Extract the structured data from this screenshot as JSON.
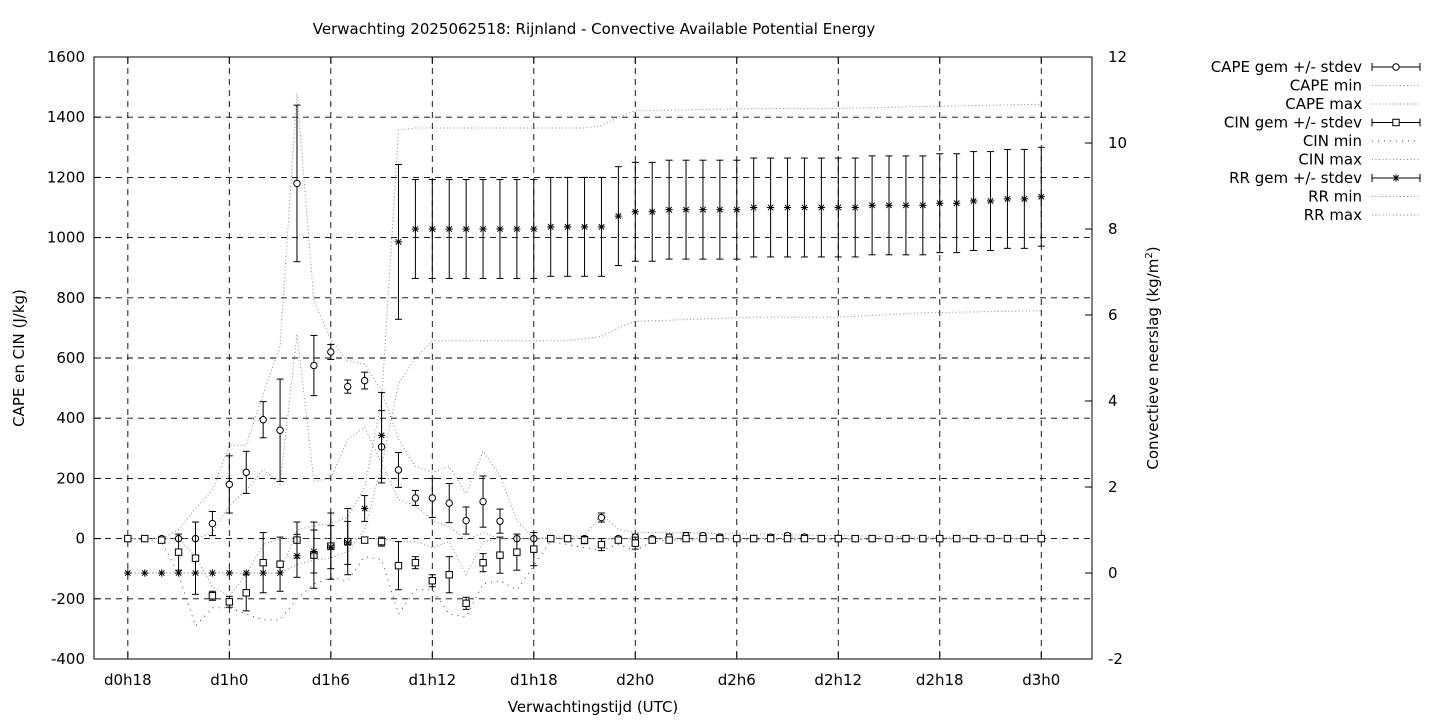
{
  "chart_data": {
    "type": "line",
    "title": "Verwachting 2025062518: Rijnland - Convective Available Potential Energy",
    "xlabel": "Verwachtingstijd (UTC)",
    "ylabel": "CAPE en CIN (J/kg)",
    "y2label": "Convectieve neerslag (kg/m",
    "y2label_sup": "2",
    "y2label_close": ")",
    "x_unit": "hours since d0h0",
    "xlim": [
      16,
      75
    ],
    "ylim": [
      -400,
      1600
    ],
    "y2lim": [
      -2,
      12
    ],
    "grid": true,
    "legend_position": "outside-right",
    "x_ticks": [
      {
        "v": 18,
        "label": "d0h18"
      },
      {
        "v": 24,
        "label": "d1h0"
      },
      {
        "v": 30,
        "label": "d1h6"
      },
      {
        "v": 36,
        "label": "d1h12"
      },
      {
        "v": 42,
        "label": "d1h18"
      },
      {
        "v": 48,
        "label": "d2h0"
      },
      {
        "v": 54,
        "label": "d2h6"
      },
      {
        "v": 60,
        "label": "d2h12"
      },
      {
        "v": 66,
        "label": "d2h18"
      },
      {
        "v": 72,
        "label": "d3h0"
      }
    ],
    "y_ticks": [
      -400,
      -200,
      0,
      200,
      400,
      600,
      800,
      1000,
      1200,
      1400,
      1600
    ],
    "y2_ticks": [
      -2,
      0,
      2,
      4,
      6,
      8,
      10,
      12
    ],
    "legend": [
      {
        "label": "CAPE gem +/- stdev",
        "style": "errbar",
        "marker": "circle"
      },
      {
        "label": "CAPE min",
        "style": "dotted"
      },
      {
        "label": "CAPE max",
        "style": "dotted"
      },
      {
        "label": "CIN gem +/- stdev",
        "style": "errbar",
        "marker": "square"
      },
      {
        "label": "CIN min",
        "style": "dotted-coarse"
      },
      {
        "label": "CIN max",
        "style": "dotted"
      },
      {
        "label": "RR gem +/- stdev",
        "style": "errbar",
        "marker": "star"
      },
      {
        "label": "RR min",
        "style": "dotted"
      },
      {
        "label": "RR max",
        "style": "dotted"
      }
    ],
    "x": [
      18,
      19,
      20,
      21,
      22,
      23,
      24,
      25,
      26,
      27,
      28,
      29,
      30,
      31,
      32,
      33,
      34,
      35,
      36,
      37,
      38,
      39,
      40,
      41,
      42,
      43,
      44,
      45,
      46,
      47,
      48,
      49,
      50,
      51,
      52,
      53,
      54,
      55,
      56,
      57,
      58,
      59,
      60,
      61,
      62,
      63,
      64,
      65,
      66,
      67,
      68,
      69,
      70,
      71,
      72
    ],
    "series": [
      {
        "name": "CAPE gem +/- stdev",
        "axis": "y",
        "marker": "circle",
        "values": [
          0,
          0,
          0,
          0,
          0,
          50,
          180,
          220,
          395,
          360,
          1180,
          575,
          620,
          505,
          525,
          305,
          228,
          135,
          135,
          118,
          60,
          123,
          58,
          0,
          0,
          0,
          0,
          0,
          70,
          0,
          5,
          0,
          5,
          10,
          10,
          5,
          0,
          0,
          5,
          10,
          5,
          0,
          0,
          0,
          0,
          0,
          0,
          0,
          0,
          0,
          0,
          0,
          0,
          0,
          0
        ],
        "std": [
          0,
          0,
          0,
          0,
          0,
          40,
          95,
          70,
          60,
          170,
          260,
          100,
          25,
          22,
          28,
          120,
          58,
          25,
          65,
          65,
          45,
          85,
          40,
          0,
          0,
          0,
          0,
          0,
          15,
          0,
          10,
          5,
          10,
          10,
          8,
          8,
          0,
          0,
          8,
          8,
          8,
          0,
          0,
          0,
          0,
          0,
          0,
          0,
          0,
          0,
          0,
          0,
          0,
          0,
          0
        ]
      },
      {
        "name": "CIN gem +/- stdev",
        "axis": "y",
        "marker": "square",
        "values": [
          0,
          0,
          -5,
          -45,
          -65,
          -190,
          -210,
          -180,
          -80,
          -85,
          -5,
          -55,
          -25,
          -10,
          -5,
          -10,
          -90,
          -80,
          -140,
          -120,
          -215,
          -80,
          -55,
          -45,
          -35,
          0,
          0,
          -5,
          -20,
          -5,
          -15,
          -5,
          -5,
          0,
          0,
          0,
          0,
          0,
          0,
          0,
          0,
          0,
          0,
          0,
          0,
          0,
          0,
          0,
          0,
          0,
          0,
          0,
          0,
          0,
          0
        ],
        "std": [
          0,
          0,
          8,
          60,
          120,
          15,
          18,
          60,
          100,
          90,
          60,
          110,
          110,
          110,
          0,
          15,
          80,
          20,
          20,
          60,
          20,
          30,
          60,
          60,
          55,
          0,
          0,
          12,
          20,
          8,
          20,
          8,
          8,
          0,
          0,
          0,
          0,
          0,
          0,
          0,
          0,
          0,
          0,
          0,
          0,
          0,
          0,
          0,
          0,
          0,
          0,
          0,
          0,
          0,
          0
        ]
      },
      {
        "name": "RR gem +/- stdev",
        "axis": "y2",
        "marker": "star",
        "values": [
          0,
          0,
          0,
          0,
          0,
          0,
          0,
          0,
          0,
          0,
          0.4,
          0.5,
          0.6,
          0.7,
          1.5,
          3.2,
          7.7,
          8,
          8,
          8,
          8,
          8,
          8,
          8,
          8,
          8.05,
          8.05,
          8.05,
          8.05,
          8.3,
          8.4,
          8.4,
          8.45,
          8.45,
          8.45,
          8.45,
          8.45,
          8.5,
          8.5,
          8.5,
          8.5,
          8.5,
          8.5,
          8.5,
          8.55,
          8.55,
          8.55,
          8.55,
          8.6,
          8.6,
          8.65,
          8.65,
          8.7,
          8.7,
          8.75
        ],
        "std": [
          0,
          0,
          0,
          0,
          0,
          0,
          0,
          0,
          0,
          0,
          0.5,
          0.5,
          0.5,
          0.5,
          0.3,
          1,
          1.8,
          1.15,
          1.15,
          1.15,
          1.15,
          1.15,
          1.15,
          1.15,
          1.15,
          1.15,
          1.15,
          1.15,
          1.15,
          1.15,
          1.15,
          1.15,
          1.15,
          1.15,
          1.15,
          1.15,
          1.15,
          1.15,
          1.15,
          1.15,
          1.15,
          1.15,
          1.15,
          1.15,
          1.15,
          1.15,
          1.15,
          1.15,
          1.15,
          1.15,
          1.15,
          1.15,
          1.15,
          1.15,
          1.15
        ]
      },
      {
        "name": "CAPE min",
        "axis": "y",
        "style": "dotted",
        "points": [
          [
            18,
            0
          ],
          [
            22,
            0
          ],
          [
            23,
            20
          ],
          [
            24,
            110
          ],
          [
            25,
            160
          ],
          [
            26,
            230
          ],
          [
            27,
            180
          ],
          [
            28,
            680
          ],
          [
            29,
            190
          ],
          [
            30,
            200
          ],
          [
            31,
            330
          ],
          [
            32,
            370
          ],
          [
            33,
            250
          ],
          [
            34,
            130
          ],
          [
            35,
            110
          ],
          [
            36,
            60
          ],
          [
            37,
            40
          ],
          [
            38,
            -5
          ],
          [
            39,
            20
          ],
          [
            40,
            0
          ],
          [
            41,
            0
          ],
          [
            42,
            0
          ],
          [
            47,
            0
          ],
          [
            48,
            0
          ],
          [
            72,
            0
          ]
        ]
      },
      {
        "name": "CAPE max",
        "axis": "y",
        "style": "dotted",
        "points": [
          [
            18,
            0
          ],
          [
            20,
            0
          ],
          [
            21,
            30
          ],
          [
            22,
            100
          ],
          [
            23,
            160
          ],
          [
            24,
            310
          ],
          [
            25,
            310
          ],
          [
            26,
            480
          ],
          [
            27,
            640
          ],
          [
            28,
            1480
          ],
          [
            29,
            790
          ],
          [
            30,
            660
          ],
          [
            31,
            590
          ],
          [
            32,
            580
          ],
          [
            33,
            490
          ],
          [
            34,
            330
          ],
          [
            35,
            240
          ],
          [
            36,
            220
          ],
          [
            37,
            240
          ],
          [
            38,
            150
          ],
          [
            39,
            290
          ],
          [
            40,
            210
          ],
          [
            41,
            60
          ],
          [
            42,
            0
          ],
          [
            45,
            10
          ],
          [
            46,
            80
          ],
          [
            47,
            30
          ],
          [
            48,
            20
          ],
          [
            50,
            20
          ],
          [
            55,
            15
          ],
          [
            60,
            10
          ],
          [
            65,
            5
          ],
          [
            72,
            0
          ]
        ]
      },
      {
        "name": "CIN min",
        "axis": "y",
        "style": "dotted-coarse",
        "points": [
          [
            18,
            0
          ],
          [
            20,
            -10
          ],
          [
            21,
            -120
          ],
          [
            22,
            -290
          ],
          [
            23,
            -230
          ],
          [
            24,
            -230
          ],
          [
            25,
            -250
          ],
          [
            26,
            -270
          ],
          [
            27,
            -270
          ],
          [
            28,
            -200
          ],
          [
            29,
            -150
          ],
          [
            30,
            -130
          ],
          [
            31,
            -140
          ],
          [
            32,
            -60
          ],
          [
            33,
            -70
          ],
          [
            34,
            -250
          ],
          [
            35,
            -170
          ],
          [
            36,
            -170
          ],
          [
            37,
            -250
          ],
          [
            38,
            -260
          ],
          [
            39,
            -150
          ],
          [
            40,
            -140
          ],
          [
            41,
            -170
          ],
          [
            42,
            -90
          ],
          [
            43,
            -10
          ],
          [
            45,
            -30
          ],
          [
            46,
            -40
          ],
          [
            47,
            -20
          ],
          [
            48,
            -40
          ],
          [
            49,
            -10
          ],
          [
            50,
            -5
          ],
          [
            72,
            0
          ]
        ]
      },
      {
        "name": "CIN max",
        "axis": "y",
        "style": "dotted",
        "points": [
          [
            18,
            0
          ],
          [
            20,
            0
          ],
          [
            21,
            0
          ],
          [
            22,
            -60
          ],
          [
            23,
            -160
          ],
          [
            24,
            -190
          ],
          [
            25,
            -120
          ],
          [
            26,
            -20
          ],
          [
            27,
            0
          ],
          [
            28,
            0
          ],
          [
            29,
            0
          ],
          [
            30,
            0
          ],
          [
            31,
            0
          ],
          [
            32,
            0
          ],
          [
            33,
            0
          ],
          [
            34,
            -10
          ],
          [
            35,
            -10
          ],
          [
            36,
            -30
          ],
          [
            37,
            -10
          ],
          [
            38,
            -120
          ],
          [
            39,
            -10
          ],
          [
            40,
            0
          ],
          [
            41,
            0
          ],
          [
            72,
            0
          ]
        ]
      },
      {
        "name": "RR min",
        "axis": "y2",
        "style": "dotted",
        "points": [
          [
            18,
            0
          ],
          [
            27,
            0
          ],
          [
            28,
            0.2
          ],
          [
            29,
            0.3
          ],
          [
            30,
            0.35
          ],
          [
            31,
            0.5
          ],
          [
            32,
            1
          ],
          [
            33,
            2.5
          ],
          [
            34,
            4.4
          ],
          [
            35,
            5
          ],
          [
            36,
            5.4
          ],
          [
            37,
            5.4
          ],
          [
            38,
            5.4
          ],
          [
            39,
            5.4
          ],
          [
            40,
            5.4
          ],
          [
            41,
            5.4
          ],
          [
            42,
            5.4
          ],
          [
            43,
            5.4
          ],
          [
            44,
            5.4
          ],
          [
            45,
            5.45
          ],
          [
            46,
            5.5
          ],
          [
            47,
            5.7
          ],
          [
            48,
            5.85
          ],
          [
            55,
            5.95
          ],
          [
            60,
            5.95
          ],
          [
            65,
            6.05
          ],
          [
            72,
            6.1
          ]
        ]
      },
      {
        "name": "RR max",
        "axis": "y2",
        "style": "dotted",
        "points": [
          [
            18,
            0
          ],
          [
            27,
            0
          ],
          [
            28,
            1
          ],
          [
            29,
            1.1
          ],
          [
            30,
            1.15
          ],
          [
            31,
            1.3
          ],
          [
            32,
            2
          ],
          [
            33,
            4
          ],
          [
            34,
            10.3
          ],
          [
            35,
            10.35
          ],
          [
            36,
            10.35
          ],
          [
            37,
            10.35
          ],
          [
            38,
            10.35
          ],
          [
            39,
            10.35
          ],
          [
            40,
            10.35
          ],
          [
            41,
            10.35
          ],
          [
            42,
            10.35
          ],
          [
            43,
            10.35
          ],
          [
            44,
            10.35
          ],
          [
            45,
            10.35
          ],
          [
            46,
            10.4
          ],
          [
            47,
            10.6
          ],
          [
            48,
            10.75
          ],
          [
            55,
            10.8
          ],
          [
            60,
            10.8
          ],
          [
            65,
            10.85
          ],
          [
            72,
            10.9
          ]
        ]
      }
    ]
  }
}
